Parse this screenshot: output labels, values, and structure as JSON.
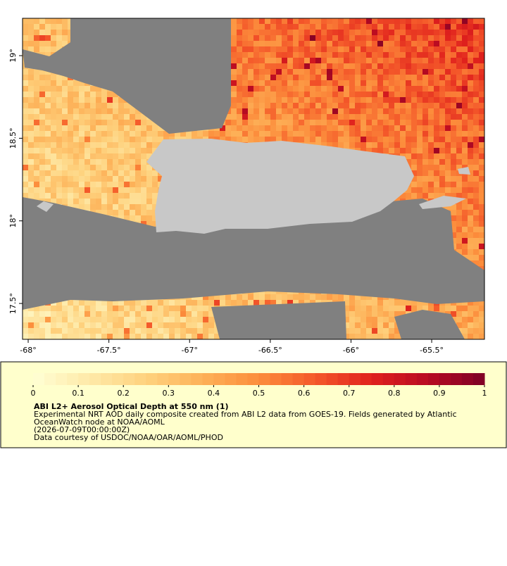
{
  "map": {
    "xlim": [
      -68.035,
      -65.173
    ],
    "ylim": [
      17.283,
      19.226
    ],
    "xticks": [
      {
        "value": -68,
        "label": "-68°"
      },
      {
        "value": -67.5,
        "label": "-67.5°"
      },
      {
        "value": -67,
        "label": "-67°"
      },
      {
        "value": -66.5,
        "label": "-66.5°"
      },
      {
        "value": -66,
        "label": "-66°"
      },
      {
        "value": -65.5,
        "label": "-65.5°"
      }
    ],
    "yticks": [
      {
        "value": 17.5,
        "label": "17.5°"
      },
      {
        "value": 18,
        "label": "18°"
      },
      {
        "value": 18.5,
        "label": "18.5°"
      },
      {
        "value": 19,
        "label": "19°"
      }
    ]
  },
  "colorbar": {
    "lim": [
      0,
      1
    ],
    "ticks": [
      0,
      0.1,
      0.2,
      0.3,
      0.4,
      0.5,
      0.6,
      0.7,
      0.8,
      0.9,
      1
    ],
    "colors": [
      "#ffffd4",
      "#fee9a8",
      "#fed27e",
      "#fdb158",
      "#fc8d3c",
      "#f4592a",
      "#e0211d",
      "#b80a22",
      "#7d0025"
    ]
  },
  "caption": {
    "title": "ABI L2+ Aerosol Optical Depth at 550 nm (1)",
    "lines": [
      "Experimental NRT AOD daily composite created from ABI L2 data from GOES-19. Fields generated by Atlantic",
      "OceanWatch node at NOAA/AOML",
      "(2026-07-09T00:00:00Z)",
      "Data courtesy of USDOC/NOAA/OAR/AOML/PHOD"
    ]
  }
}
